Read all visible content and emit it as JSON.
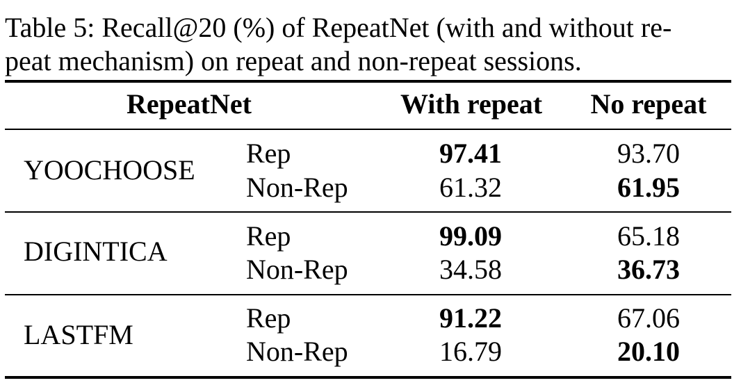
{
  "caption": [
    "Table 5: Recall@20 (%) of RepeatNet (with and without re-",
    "peat mechanism) on repeat and non-repeat sessions."
  ],
  "table": {
    "header": [
      "RepeatNet",
      "With repeat",
      "No repeat"
    ],
    "groups": [
      {
        "dataset": "YOOCHOOSE",
        "rows": [
          [
            "Rep",
            "97.41",
            "93.70"
          ],
          [
            "Non-Rep",
            "61.32",
            "61.95"
          ]
        ]
      },
      {
        "dataset": "DIGINTICA",
        "rows": [
          [
            "Rep",
            "99.09",
            "65.18"
          ],
          [
            "Non-Rep",
            "34.58",
            "36.73"
          ]
        ]
      },
      {
        "dataset": "LASTFM",
        "rows": [
          [
            "Rep",
            "91.22",
            "67.06"
          ],
          [
            "Non-Rep",
            "16.79",
            "20.10"
          ]
        ]
      }
    ]
  }
}
